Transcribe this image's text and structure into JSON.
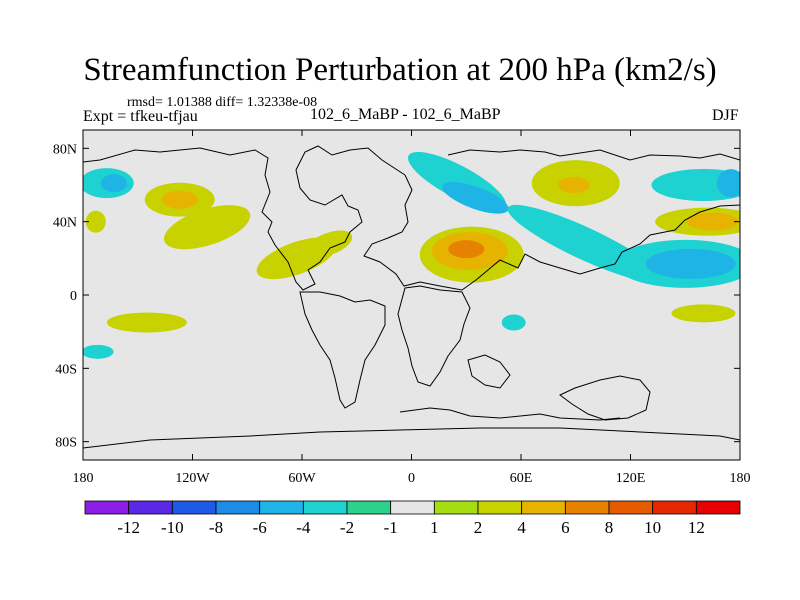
{
  "header": {
    "title": "Streamfunction Perturbation at 200 hPa (km2/s)",
    "stats": "rmsd= 1.01388 diff= 1.32338e-08",
    "expt": "Expt = tfkeu-tfjau",
    "center": "102_6_MaBP - 102_6_MaBP",
    "season": "DJF"
  },
  "chart_data": {
    "type": "heatmap",
    "title": "Streamfunction Perturbation at 200 hPa (km2/s)",
    "projection": "cylindrical-equidistant",
    "xlim": [
      -180,
      180
    ],
    "ylim": [
      -90,
      90
    ],
    "x_ticks": [
      {
        "value": -180,
        "label": "180"
      },
      {
        "value": -120,
        "label": "120W"
      },
      {
        "value": -60,
        "label": "60W"
      },
      {
        "value": 0,
        "label": "0"
      },
      {
        "value": 60,
        "label": "60E"
      },
      {
        "value": 120,
        "label": "120E"
      },
      {
        "value": 180,
        "label": "180"
      }
    ],
    "y_ticks": [
      {
        "value": 80,
        "label": "80N"
      },
      {
        "value": 40,
        "label": "40N"
      },
      {
        "value": 0,
        "label": "0"
      },
      {
        "value": -40,
        "label": "40S"
      },
      {
        "value": -80,
        "label": "80S"
      }
    ],
    "colorbar": {
      "labels": [
        "-12",
        "-10",
        "-8",
        "-6",
        "-4",
        "-2",
        "-1",
        "1",
        "2",
        "4",
        "6",
        "8",
        "10",
        "12"
      ],
      "colors": [
        "#8c1ee6",
        "#5a28e6",
        "#1e5ae6",
        "#1e8ce6",
        "#1eb4e6",
        "#1ed2d2",
        "#2ad28c",
        "#e6e6e6",
        "#a6dc12",
        "#c8d200",
        "#e6b400",
        "#e68200",
        "#e65a00",
        "#e62800",
        "#e60000"
      ]
    },
    "anomalies": [
      {
        "lon": -167,
        "lat": 61,
        "level": "-2"
      },
      {
        "lon": -163,
        "lat": 61,
        "level": "-4"
      },
      {
        "lon": -127,
        "lat": 52,
        "level": "2"
      },
      {
        "lon": -127,
        "lat": 52,
        "level": "4"
      },
      {
        "lon": -173,
        "lat": 40,
        "level": "2"
      },
      {
        "lon": -112,
        "lat": 37,
        "level": "2"
      },
      {
        "lon": -63,
        "lat": 20,
        "level": "2"
      },
      {
        "lon": -45,
        "lat": 28,
        "level": "2"
      },
      {
        "lon": -145,
        "lat": -15,
        "level": "2"
      },
      {
        "lon": -172,
        "lat": -31,
        "level": "-2"
      },
      {
        "lon": 33,
        "lat": 22,
        "level": "2"
      },
      {
        "lon": 32,
        "lat": 24,
        "level": "4"
      },
      {
        "lon": 30,
        "lat": 25,
        "level": "6"
      },
      {
        "lon": 25,
        "lat": 62,
        "level": "-2"
      },
      {
        "lon": 35,
        "lat": 53,
        "level": "-4"
      },
      {
        "lon": 95,
        "lat": 28,
        "level": "-2"
      },
      {
        "lon": 90,
        "lat": 61,
        "level": "2"
      },
      {
        "lon": 89,
        "lat": 60,
        "level": "4"
      },
      {
        "lon": 160,
        "lat": 60,
        "level": "-2"
      },
      {
        "lon": 175,
        "lat": 61,
        "level": "-4"
      },
      {
        "lon": 150,
        "lat": 17,
        "level": "-2"
      },
      {
        "lon": 153,
        "lat": 17,
        "level": "-4"
      },
      {
        "lon": 162,
        "lat": 40,
        "level": "2"
      },
      {
        "lon": 165,
        "lat": 40,
        "level": "4"
      },
      {
        "lon": 160,
        "lat": -10,
        "level": "2"
      },
      {
        "lon": 56,
        "lat": -15,
        "level": "-2"
      }
    ]
  }
}
